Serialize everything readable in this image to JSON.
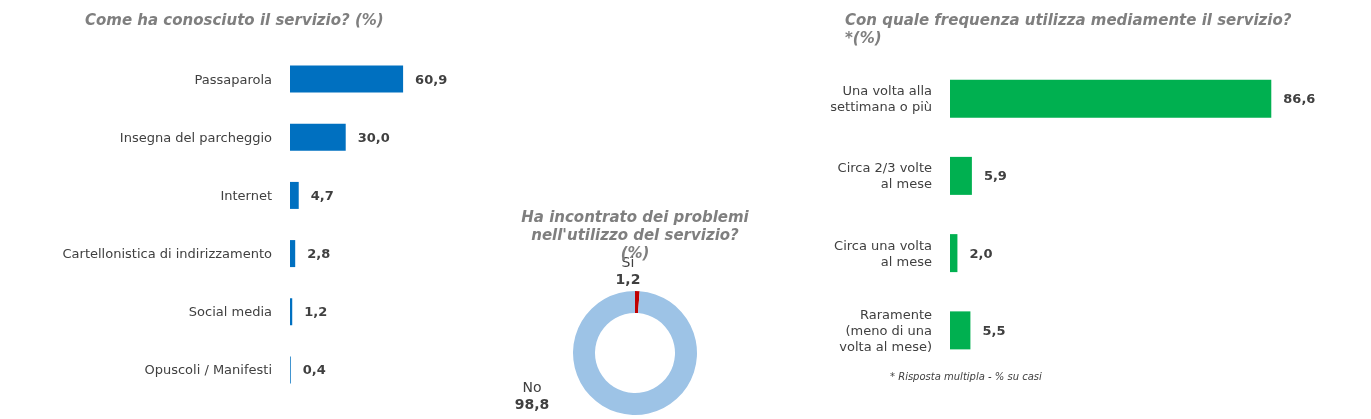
{
  "chart_data": [
    {
      "type": "bar",
      "orientation": "horizontal",
      "title": "Come ha conosciuto il servizio? (%)",
      "categories": [
        "Passaparola",
        "Insegna del parcheggio",
        "Internet",
        "Cartellonistica di indirizzamento",
        "Social media",
        "Opuscoli / Manifesti"
      ],
      "values": [
        60.9,
        30.0,
        4.7,
        2.8,
        1.2,
        0.4
      ],
      "value_labels": [
        "60,9",
        "30,0",
        "4,7",
        "2,8",
        "1,2",
        "0,4"
      ],
      "color": "#0070c0"
    },
    {
      "type": "donut",
      "title": "Ha incontrato dei problemi\nnell'utilizzo del servizio?\n(%)",
      "categories": [
        "Si",
        "No"
      ],
      "values": [
        1.2,
        98.8
      ],
      "value_labels": [
        "1,2",
        "98,8"
      ],
      "colors": [
        "#c00000",
        "#9dc3e6"
      ]
    },
    {
      "type": "bar",
      "orientation": "horizontal",
      "title": "Con quale frequenza utilizza mediamente il servizio?\n*(%)",
      "categories": [
        "Una volta alla\nsettimana o più",
        "Circa 2/3 volte\nal mese",
        "Circa una volta\nal mese",
        "Raramente\n(meno di una\nvolta al mese)"
      ],
      "values": [
        86.6,
        5.9,
        2.0,
        5.5
      ],
      "value_labels": [
        "86,6",
        "5,9",
        "2,0",
        "5,5"
      ],
      "color": "#00b050",
      "annotations": [
        "* Risposta multipla - % su casi"
      ]
    }
  ]
}
